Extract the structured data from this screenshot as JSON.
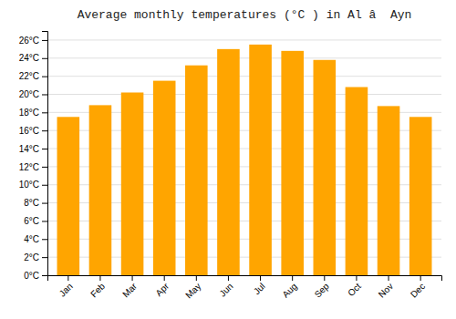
{
  "chart_data": {
    "type": "bar",
    "title": "Average monthly temperatures (°C ) in Al â  Ayn",
    "categories": [
      "Jan",
      "Feb",
      "Mar",
      "Apr",
      "May",
      "Jun",
      "Jul",
      "Aug",
      "Sep",
      "Oct",
      "Nov",
      "Dec"
    ],
    "values": [
      17.5,
      18.8,
      20.2,
      21.5,
      23.2,
      25.0,
      25.5,
      24.8,
      23.8,
      20.8,
      18.7,
      17.5
    ],
    "color": "#FFA500",
    "ylim": [
      0,
      27
    ],
    "yticks": [
      {
        "value": 0,
        "label": "0°C"
      },
      {
        "value": 2,
        "label": "2°C"
      },
      {
        "value": 4,
        "label": "4°C"
      },
      {
        "value": 6,
        "label": "6°C"
      },
      {
        "value": 8,
        "label": "8°C"
      },
      {
        "value": 10,
        "label": "10°C"
      },
      {
        "value": 12,
        "label": "12°C"
      },
      {
        "value": 14,
        "label": "14°C"
      },
      {
        "value": 16,
        "label": "16°C"
      },
      {
        "value": 18,
        "label": "18°C"
      },
      {
        "value": 20,
        "label": "20°C"
      },
      {
        "value": 22,
        "label": "22°C"
      },
      {
        "value": 24,
        "label": "24°C"
      },
      {
        "value": 26,
        "label": "26°C"
      }
    ],
    "grid": true
  }
}
